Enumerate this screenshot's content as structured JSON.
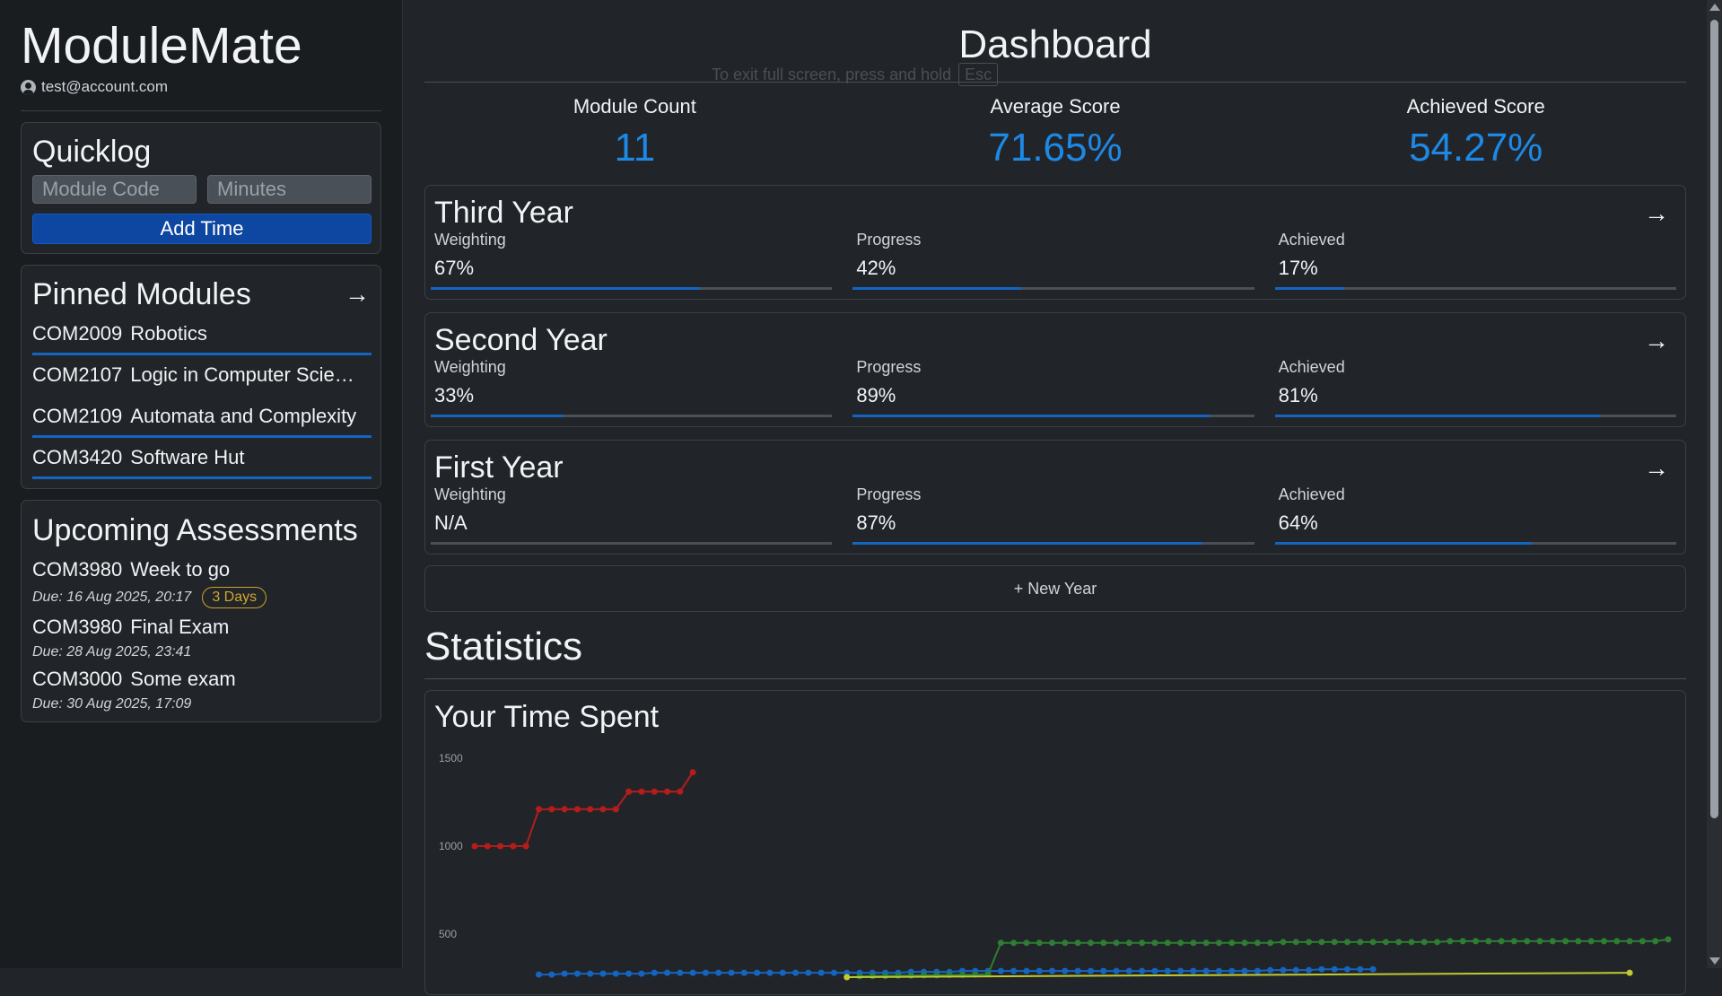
{
  "app": {
    "title": "ModuleMate",
    "account_email": "test@account.com"
  },
  "quicklog": {
    "title": "Quicklog",
    "module_code_placeholder": "Module Code",
    "minutes_placeholder": "Minutes",
    "add_button": "Add Time"
  },
  "pinned": {
    "title": "Pinned Modules",
    "items": [
      {
        "code": "COM2009",
        "name": "Robotics"
      },
      {
        "code": "COM2107",
        "name": "Logic in Computer Scie…"
      },
      {
        "code": "COM2109",
        "name": "Automata and Complexity"
      },
      {
        "code": "COM3420",
        "name": "Software Hut"
      }
    ]
  },
  "upcoming": {
    "title": "Upcoming Assessments",
    "items": [
      {
        "code": "COM3980",
        "name": "Week to go",
        "due": "Due: 16 Aug 2025, 20:17",
        "badge": "3 Days"
      },
      {
        "code": "COM3980",
        "name": "Final Exam",
        "due": "Due: 28 Aug 2025, 23:41"
      },
      {
        "code": "COM3000",
        "name": "Some exam",
        "due": "Due: 30 Aug 2025, 17:09"
      }
    ]
  },
  "dashboard": {
    "title": "Dashboard",
    "fullscreen_hint": "To exit full screen, press and hold",
    "fullscreen_key": "Esc",
    "stats": [
      {
        "label": "Module Count",
        "value": "11"
      },
      {
        "label": "Average Score",
        "value": "71.65%"
      },
      {
        "label": "Achieved Score",
        "value": "54.27%"
      }
    ]
  },
  "years": [
    {
      "title": "Third Year",
      "weighting_label": "Weighting",
      "weighting": "67%",
      "weighting_fill": 0.67,
      "progress_label": "Progress",
      "progress": "42%",
      "progress_fill": 0.42,
      "achieved_label": "Achieved",
      "achieved": "17%",
      "achieved_fill": 0.17
    },
    {
      "title": "Second Year",
      "weighting_label": "Weighting",
      "weighting": "33%",
      "weighting_fill": 0.33,
      "progress_label": "Progress",
      "progress": "89%",
      "progress_fill": 0.89,
      "achieved_label": "Achieved",
      "achieved": "81%",
      "achieved_fill": 0.81
    },
    {
      "title": "First Year",
      "weighting_label": "Weighting",
      "weighting": "N/A",
      "weighting_fill": 0,
      "progress_label": "Progress",
      "progress": "87%",
      "progress_fill": 0.87,
      "achieved_label": "Achieved",
      "achieved": "64%",
      "achieved_fill": 0.64
    }
  ],
  "new_year_label": "+ New Year",
  "statistics": {
    "title": "Statistics",
    "time_title": "Your Time Spent"
  },
  "colors": {
    "accent": "#1e88e5",
    "primary_button": "#0d47a1",
    "progress_bar": "#1565c0",
    "badge": "#d4a72c"
  },
  "chart_data": {
    "type": "line",
    "ylim": [
      0,
      1500
    ],
    "yticks": [
      "1500",
      "1000",
      "500"
    ],
    "series": [
      {
        "color": "#b71c1c",
        "x": [
          0,
          1,
          2,
          3,
          4,
          5,
          6,
          7,
          8,
          9,
          10,
          11,
          12,
          13,
          14,
          15,
          16,
          17
        ],
        "values": [
          1000,
          1000,
          1000,
          1000,
          1000,
          1210,
          1210,
          1210,
          1210,
          1210,
          1210,
          1210,
          1310,
          1310,
          1310,
          1310,
          1310,
          1420
        ]
      },
      {
        "color": "#1565c0",
        "x": [
          5,
          6,
          7,
          8,
          9,
          10,
          11,
          12,
          13,
          14,
          15,
          16,
          17,
          18,
          19,
          20,
          21,
          22,
          23,
          24,
          25,
          26,
          27,
          28,
          29,
          30,
          31,
          32,
          33,
          34,
          35,
          36,
          37,
          38,
          39,
          40,
          41,
          42,
          43,
          44,
          45,
          46,
          47,
          48,
          49,
          50,
          51,
          52,
          53,
          54,
          55,
          56,
          57,
          58,
          59,
          60,
          61,
          62,
          63,
          64,
          65,
          66,
          67,
          68,
          69,
          70
        ],
        "values": [
          270,
          270,
          275,
          275,
          275,
          275,
          275,
          275,
          275,
          280,
          280,
          280,
          280,
          280,
          280,
          280,
          280,
          280,
          280,
          280,
          280,
          280,
          280,
          280,
          280,
          280,
          280,
          280,
          280,
          285,
          285,
          285,
          285,
          290,
          290,
          290,
          290,
          290,
          290,
          290,
          290,
          290,
          290,
          290,
          290,
          290,
          290,
          290,
          290,
          290,
          290,
          290,
          290,
          290,
          290,
          290,
          290,
          295,
          295,
          295,
          295,
          300,
          300,
          300,
          300,
          300
        ]
      },
      {
        "color": "#2e7d32",
        "x": [
          30,
          31,
          32,
          33,
          34,
          35,
          36,
          37,
          38,
          39,
          40,
          41,
          42,
          43,
          44,
          45,
          46,
          47,
          48,
          49,
          50,
          51,
          52,
          53,
          54,
          55,
          56,
          57,
          58,
          59,
          60,
          61,
          62,
          63,
          64,
          65,
          66,
          67,
          68,
          69,
          70,
          71,
          72,
          73,
          74,
          75,
          76,
          77,
          78,
          79,
          80,
          81,
          82,
          83,
          84,
          85,
          86,
          87,
          88,
          89,
          90,
          91,
          92,
          93
        ],
        "values": [
          260,
          262,
          262,
          264,
          264,
          266,
          266,
          268,
          268,
          270,
          272,
          450,
          450,
          450,
          450,
          450,
          450,
          450,
          450,
          450,
          450,
          450,
          450,
          450,
          450,
          450,
          450,
          450,
          450,
          450,
          450,
          450,
          450,
          455,
          455,
          455,
          455,
          455,
          455,
          455,
          455,
          455,
          455,
          455,
          455,
          455,
          460,
          460,
          460,
          460,
          460,
          460,
          460,
          460,
          460,
          460,
          460,
          460,
          460,
          460,
          460,
          460,
          460,
          470
        ]
      },
      {
        "color": "#c0ca33",
        "x": [
          29,
          90
        ],
        "values": [
          255,
          280
        ]
      }
    ],
    "x_count": 94
  }
}
